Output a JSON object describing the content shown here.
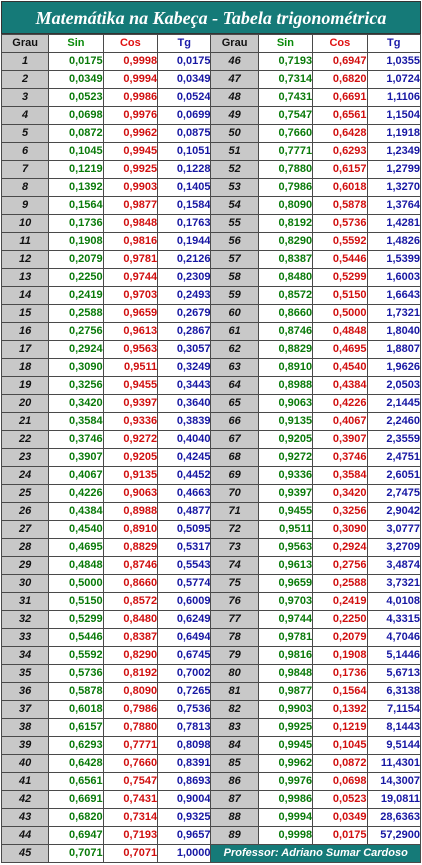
{
  "title": "Matemátika na Kabeça - Tabela trigonométrica",
  "headers": {
    "grau": "Grau",
    "sin": "Sin",
    "cos": "Cos",
    "tg": "Tg"
  },
  "footer": "Professor: Adriano Sumar Cardoso",
  "colors": {
    "title_bg": "#157a78",
    "sin": "#0a7a0a",
    "cos": "#d10f0f",
    "tg": "#1717a3",
    "grau_bg": "#c8c8c8"
  },
  "rows": [
    {
      "left": {
        "grau": "1",
        "sin": "0,0175",
        "cos": "0,9998",
        "tg": "0,0175"
      },
      "right": {
        "grau": "46",
        "sin": "0,7193",
        "cos": "0,6947",
        "tg": "1,0355"
      }
    },
    {
      "left": {
        "grau": "2",
        "sin": "0,0349",
        "cos": "0,9994",
        "tg": "0,0349"
      },
      "right": {
        "grau": "47",
        "sin": "0,7314",
        "cos": "0,6820",
        "tg": "1,0724"
      }
    },
    {
      "left": {
        "grau": "3",
        "sin": "0,0523",
        "cos": "0,9986",
        "tg": "0,0524"
      },
      "right": {
        "grau": "48",
        "sin": "0,7431",
        "cos": "0,6691",
        "tg": "1,1106"
      }
    },
    {
      "left": {
        "grau": "4",
        "sin": "0,0698",
        "cos": "0,9976",
        "tg": "0,0699"
      },
      "right": {
        "grau": "49",
        "sin": "0,7547",
        "cos": "0,6561",
        "tg": "1,1504"
      }
    },
    {
      "left": {
        "grau": "5",
        "sin": "0,0872",
        "cos": "0,9962",
        "tg": "0,0875"
      },
      "right": {
        "grau": "50",
        "sin": "0,7660",
        "cos": "0,6428",
        "tg": "1,1918"
      }
    },
    {
      "left": {
        "grau": "6",
        "sin": "0,1045",
        "cos": "0,9945",
        "tg": "0,1051"
      },
      "right": {
        "grau": "51",
        "sin": "0,7771",
        "cos": "0,6293",
        "tg": "1,2349"
      }
    },
    {
      "left": {
        "grau": "7",
        "sin": "0,1219",
        "cos": "0,9925",
        "tg": "0,1228"
      },
      "right": {
        "grau": "52",
        "sin": "0,7880",
        "cos": "0,6157",
        "tg": "1,2799"
      }
    },
    {
      "left": {
        "grau": "8",
        "sin": "0,1392",
        "cos": "0,9903",
        "tg": "0,1405"
      },
      "right": {
        "grau": "53",
        "sin": "0,7986",
        "cos": "0,6018",
        "tg": "1,3270"
      }
    },
    {
      "left": {
        "grau": "9",
        "sin": "0,1564",
        "cos": "0,9877",
        "tg": "0,1584"
      },
      "right": {
        "grau": "54",
        "sin": "0,8090",
        "cos": "0,5878",
        "tg": "1,3764"
      }
    },
    {
      "left": {
        "grau": "10",
        "sin": "0,1736",
        "cos": "0,9848",
        "tg": "0,1763"
      },
      "right": {
        "grau": "55",
        "sin": "0,8192",
        "cos": "0,5736",
        "tg": "1,4281"
      }
    },
    {
      "left": {
        "grau": "11",
        "sin": "0,1908",
        "cos": "0,9816",
        "tg": "0,1944"
      },
      "right": {
        "grau": "56",
        "sin": "0,8290",
        "cos": "0,5592",
        "tg": "1,4826"
      }
    },
    {
      "left": {
        "grau": "12",
        "sin": "0,2079",
        "cos": "0,9781",
        "tg": "0,2126"
      },
      "right": {
        "grau": "57",
        "sin": "0,8387",
        "cos": "0,5446",
        "tg": "1,5399"
      }
    },
    {
      "left": {
        "grau": "13",
        "sin": "0,2250",
        "cos": "0,9744",
        "tg": "0,2309"
      },
      "right": {
        "grau": "58",
        "sin": "0,8480",
        "cos": "0,5299",
        "tg": "1,6003"
      }
    },
    {
      "left": {
        "grau": "14",
        "sin": "0,2419",
        "cos": "0,9703",
        "tg": "0,2493"
      },
      "right": {
        "grau": "59",
        "sin": "0,8572",
        "cos": "0,5150",
        "tg": "1,6643"
      }
    },
    {
      "left": {
        "grau": "15",
        "sin": "0,2588",
        "cos": "0,9659",
        "tg": "0,2679"
      },
      "right": {
        "grau": "60",
        "sin": "0,8660",
        "cos": "0,5000",
        "tg": "1,7321"
      }
    },
    {
      "left": {
        "grau": "16",
        "sin": "0,2756",
        "cos": "0,9613",
        "tg": "0,2867"
      },
      "right": {
        "grau": "61",
        "sin": "0,8746",
        "cos": "0,4848",
        "tg": "1,8040"
      }
    },
    {
      "left": {
        "grau": "17",
        "sin": "0,2924",
        "cos": "0,9563",
        "tg": "0,3057"
      },
      "right": {
        "grau": "62",
        "sin": "0,8829",
        "cos": "0,4695",
        "tg": "1,8807"
      }
    },
    {
      "left": {
        "grau": "18",
        "sin": "0,3090",
        "cos": "0,9511",
        "tg": "0,3249"
      },
      "right": {
        "grau": "63",
        "sin": "0,8910",
        "cos": "0,4540",
        "tg": "1,9626"
      }
    },
    {
      "left": {
        "grau": "19",
        "sin": "0,3256",
        "cos": "0,9455",
        "tg": "0,3443"
      },
      "right": {
        "grau": "64",
        "sin": "0,8988",
        "cos": "0,4384",
        "tg": "2,0503"
      }
    },
    {
      "left": {
        "grau": "20",
        "sin": "0,3420",
        "cos": "0,9397",
        "tg": "0,3640"
      },
      "right": {
        "grau": "65",
        "sin": "0,9063",
        "cos": "0,4226",
        "tg": "2,1445"
      }
    },
    {
      "left": {
        "grau": "21",
        "sin": "0,3584",
        "cos": "0,9336",
        "tg": "0,3839"
      },
      "right": {
        "grau": "66",
        "sin": "0,9135",
        "cos": "0,4067",
        "tg": "2,2460"
      }
    },
    {
      "left": {
        "grau": "22",
        "sin": "0,3746",
        "cos": "0,9272",
        "tg": "0,4040"
      },
      "right": {
        "grau": "67",
        "sin": "0,9205",
        "cos": "0,3907",
        "tg": "2,3559"
      }
    },
    {
      "left": {
        "grau": "23",
        "sin": "0,3907",
        "cos": "0,9205",
        "tg": "0,4245"
      },
      "right": {
        "grau": "68",
        "sin": "0,9272",
        "cos": "0,3746",
        "tg": "2,4751"
      }
    },
    {
      "left": {
        "grau": "24",
        "sin": "0,4067",
        "cos": "0,9135",
        "tg": "0,4452"
      },
      "right": {
        "grau": "69",
        "sin": "0,9336",
        "cos": "0,3584",
        "tg": "2,6051"
      }
    },
    {
      "left": {
        "grau": "25",
        "sin": "0,4226",
        "cos": "0,9063",
        "tg": "0,4663"
      },
      "right": {
        "grau": "70",
        "sin": "0,9397",
        "cos": "0,3420",
        "tg": "2,7475"
      }
    },
    {
      "left": {
        "grau": "26",
        "sin": "0,4384",
        "cos": "0,8988",
        "tg": "0,4877"
      },
      "right": {
        "grau": "71",
        "sin": "0,9455",
        "cos": "0,3256",
        "tg": "2,9042"
      }
    },
    {
      "left": {
        "grau": "27",
        "sin": "0,4540",
        "cos": "0,8910",
        "tg": "0,5095"
      },
      "right": {
        "grau": "72",
        "sin": "0,9511",
        "cos": "0,3090",
        "tg": "3,0777"
      }
    },
    {
      "left": {
        "grau": "28",
        "sin": "0,4695",
        "cos": "0,8829",
        "tg": "0,5317"
      },
      "right": {
        "grau": "73",
        "sin": "0,9563",
        "cos": "0,2924",
        "tg": "3,2709"
      }
    },
    {
      "left": {
        "grau": "29",
        "sin": "0,4848",
        "cos": "0,8746",
        "tg": "0,5543"
      },
      "right": {
        "grau": "74",
        "sin": "0,9613",
        "cos": "0,2756",
        "tg": "3,4874"
      }
    },
    {
      "left": {
        "grau": "30",
        "sin": "0,5000",
        "cos": "0,8660",
        "tg": "0,5774"
      },
      "right": {
        "grau": "75",
        "sin": "0,9659",
        "cos": "0,2588",
        "tg": "3,7321"
      }
    },
    {
      "left": {
        "grau": "31",
        "sin": "0,5150",
        "cos": "0,8572",
        "tg": "0,6009"
      },
      "right": {
        "grau": "76",
        "sin": "0,9703",
        "cos": "0,2419",
        "tg": "4,0108"
      }
    },
    {
      "left": {
        "grau": "32",
        "sin": "0,5299",
        "cos": "0,8480",
        "tg": "0,6249"
      },
      "right": {
        "grau": "77",
        "sin": "0,9744",
        "cos": "0,2250",
        "tg": "4,3315"
      }
    },
    {
      "left": {
        "grau": "33",
        "sin": "0,5446",
        "cos": "0,8387",
        "tg": "0,6494"
      },
      "right": {
        "grau": "78",
        "sin": "0,9781",
        "cos": "0,2079",
        "tg": "4,7046"
      }
    },
    {
      "left": {
        "grau": "34",
        "sin": "0,5592",
        "cos": "0,8290",
        "tg": "0,6745"
      },
      "right": {
        "grau": "79",
        "sin": "0,9816",
        "cos": "0,1908",
        "tg": "5,1446"
      }
    },
    {
      "left": {
        "grau": "35",
        "sin": "0,5736",
        "cos": "0,8192",
        "tg": "0,7002"
      },
      "right": {
        "grau": "80",
        "sin": "0,9848",
        "cos": "0,1736",
        "tg": "5,6713"
      }
    },
    {
      "left": {
        "grau": "36",
        "sin": "0,5878",
        "cos": "0,8090",
        "tg": "0,7265"
      },
      "right": {
        "grau": "81",
        "sin": "0,9877",
        "cos": "0,1564",
        "tg": "6,3138"
      }
    },
    {
      "left": {
        "grau": "37",
        "sin": "0,6018",
        "cos": "0,7986",
        "tg": "0,7536"
      },
      "right": {
        "grau": "82",
        "sin": "0,9903",
        "cos": "0,1392",
        "tg": "7,1154"
      }
    },
    {
      "left": {
        "grau": "38",
        "sin": "0,6157",
        "cos": "0,7880",
        "tg": "0,7813"
      },
      "right": {
        "grau": "83",
        "sin": "0,9925",
        "cos": "0,1219",
        "tg": "8,1443"
      }
    },
    {
      "left": {
        "grau": "39",
        "sin": "0,6293",
        "cos": "0,7771",
        "tg": "0,8098"
      },
      "right": {
        "grau": "84",
        "sin": "0,9945",
        "cos": "0,1045",
        "tg": "9,5144"
      }
    },
    {
      "left": {
        "grau": "40",
        "sin": "0,6428",
        "cos": "0,7660",
        "tg": "0,8391"
      },
      "right": {
        "grau": "85",
        "sin": "0,9962",
        "cos": "0,0872",
        "tg": "11,4301"
      }
    },
    {
      "left": {
        "grau": "41",
        "sin": "0,6561",
        "cos": "0,7547",
        "tg": "0,8693"
      },
      "right": {
        "grau": "86",
        "sin": "0,9976",
        "cos": "0,0698",
        "tg": "14,3007"
      }
    },
    {
      "left": {
        "grau": "42",
        "sin": "0,6691",
        "cos": "0,7431",
        "tg": "0,9004"
      },
      "right": {
        "grau": "87",
        "sin": "0,9986",
        "cos": "0,0523",
        "tg": "19,0811"
      }
    },
    {
      "left": {
        "grau": "43",
        "sin": "0,6820",
        "cos": "0,7314",
        "tg": "0,9325"
      },
      "right": {
        "grau": "88",
        "sin": "0,9994",
        "cos": "0,0349",
        "tg": "28,6363"
      }
    },
    {
      "left": {
        "grau": "44",
        "sin": "0,6947",
        "cos": "0,7193",
        "tg": "0,9657"
      },
      "right": {
        "grau": "89",
        "sin": "0,9998",
        "cos": "0,0175",
        "tg": "57,2900"
      }
    }
  ],
  "last_row": {
    "grau": "45",
    "sin": "0,7071",
    "cos": "0,7071",
    "tg": "1,0000"
  }
}
